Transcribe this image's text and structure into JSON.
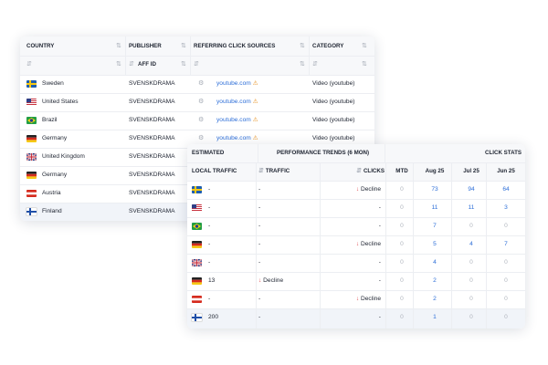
{
  "table1": {
    "columns": [
      "COUNTRY",
      "PUBLISHER",
      "REFERRING CLICK SOURCES",
      "CATEGORY"
    ],
    "filter": "AFF ID",
    "rows": [
      [
        "Sweden",
        "SVENSKDRAMA",
        "youtube.com",
        "Video (youtube)"
      ],
      [
        "United States",
        "SVENSKDRAMA",
        "youtube.com",
        "Video (youtube)"
      ],
      [
        "Brazil",
        "SVENSKDRAMA",
        "youtube.com",
        "Video (youtube)"
      ],
      [
        "Germany",
        "SVENSKDRAMA",
        "youtube.com",
        "Video (youtube)"
      ],
      [
        "United Kingdom",
        "SVENSKDRAMA"
      ],
      [
        "Germany",
        "SVENSKDRAMA"
      ],
      [
        "Austria",
        "SVENSKDRAMA"
      ],
      [
        "Finland",
        "SVENSKDRAMA"
      ]
    ]
  },
  "table2": {
    "groups": [
      "ESTIMATED",
      "PERFORMANCE TRENDS (6 MON)",
      "CLICK STATS"
    ],
    "columns": [
      "LOCAL TRAFFIC",
      "TRAFFIC",
      "CLICKS",
      "MTD",
      "Aug 25",
      "Jul 25",
      "Jun 25"
    ],
    "rows": [
      [
        "-",
        "-",
        "Decline",
        0,
        73,
        94,
        64
      ],
      [
        "-",
        "-",
        "-",
        0,
        11,
        11,
        3
      ],
      [
        "-",
        "-",
        "-",
        0,
        7,
        0,
        0
      ],
      [
        "-",
        "-",
        "Decline",
        0,
        5,
        4,
        7
      ],
      [
        "-",
        "-",
        "-",
        0,
        4,
        0,
        0
      ],
      [
        13,
        "Decline",
        "-",
        0,
        2,
        0,
        0
      ],
      [
        "-",
        "-",
        "Decline",
        0,
        2,
        0,
        0
      ],
      [
        200,
        "-",
        "-",
        0,
        1,
        0,
        0
      ]
    ]
  }
}
